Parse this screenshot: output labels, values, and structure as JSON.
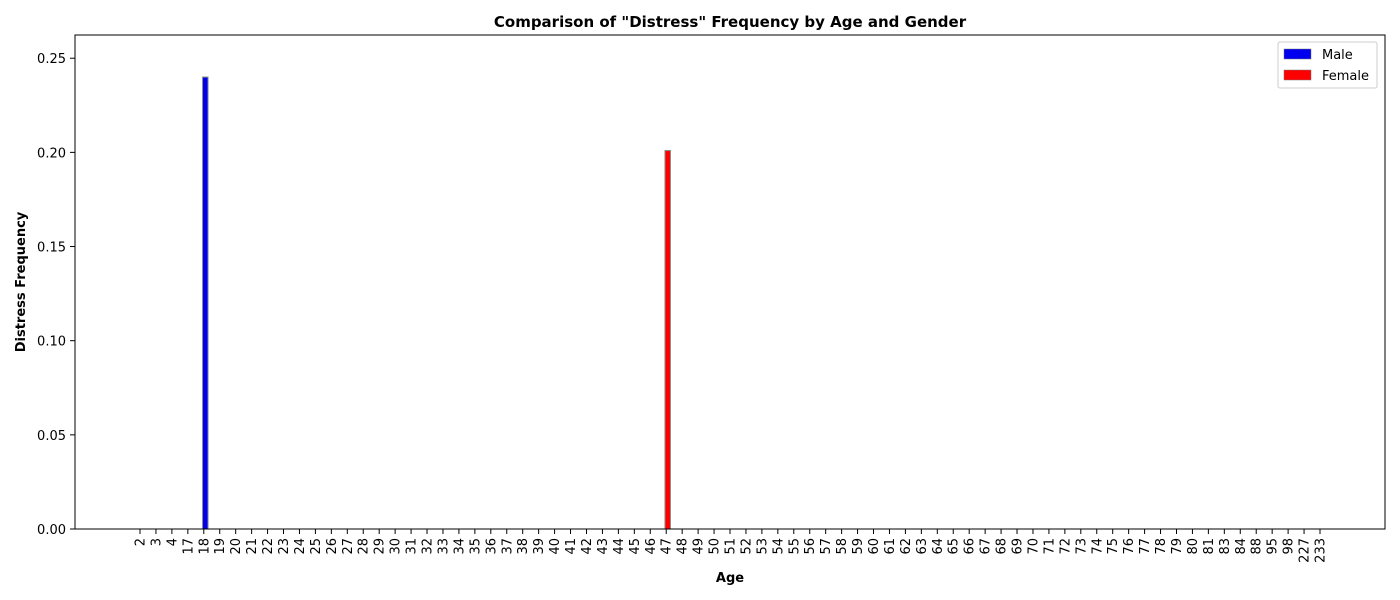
{
  "chart_data": {
    "type": "bar",
    "title": "Comparison of \"Distress\" Frequency by Age and Gender",
    "xlabel": "Age",
    "ylabel": "Distress Frequency",
    "ylim": [
      0,
      0.25
    ],
    "yticks": [
      "0.00",
      "0.05",
      "0.10",
      "0.15",
      "0.20",
      "0.25"
    ],
    "grid": false,
    "legend_position": "top-right",
    "categories": [
      "2",
      "3",
      "4",
      "17",
      "18",
      "19",
      "20",
      "21",
      "22",
      "23",
      "24",
      "25",
      "26",
      "27",
      "28",
      "29",
      "30",
      "31",
      "32",
      "33",
      "34",
      "35",
      "36",
      "37",
      "38",
      "39",
      "40",
      "41",
      "42",
      "43",
      "44",
      "45",
      "46",
      "47",
      "48",
      "49",
      "50",
      "51",
      "52",
      "53",
      "54",
      "55",
      "56",
      "57",
      "58",
      "59",
      "60",
      "61",
      "62",
      "63",
      "64",
      "65",
      "66",
      "67",
      "68",
      "69",
      "70",
      "71",
      "72",
      "73",
      "74",
      "75",
      "76",
      "77",
      "78",
      "79",
      "80",
      "81",
      "83",
      "84",
      "88",
      "95",
      "98",
      "227",
      "233"
    ],
    "series": [
      {
        "name": "Male",
        "color": "#0000ee",
        "values": [
          0,
          0,
          0,
          0,
          0.24,
          0,
          0,
          0,
          0,
          0,
          0,
          0,
          0,
          0,
          0,
          0,
          0,
          0,
          0,
          0,
          0,
          0,
          0,
          0,
          0,
          0,
          0,
          0,
          0,
          0,
          0,
          0,
          0,
          0,
          0,
          0,
          0,
          0,
          0,
          0,
          0,
          0,
          0,
          0,
          0,
          0,
          0,
          0,
          0,
          0,
          0,
          0,
          0,
          0,
          0,
          0,
          0,
          0,
          0,
          0,
          0,
          0,
          0,
          0,
          0,
          0,
          0,
          0,
          0,
          0,
          0,
          0,
          0,
          0,
          0
        ]
      },
      {
        "name": "Female",
        "color": "#ff0000",
        "values": [
          0,
          0,
          0,
          0,
          0,
          0,
          0,
          0,
          0,
          0,
          0,
          0,
          0,
          0,
          0,
          0,
          0,
          0,
          0,
          0,
          0,
          0,
          0,
          0,
          0,
          0,
          0,
          0,
          0,
          0,
          0,
          0,
          0,
          0.201,
          0,
          0,
          0,
          0,
          0,
          0,
          0,
          0,
          0,
          0,
          0,
          0,
          0,
          0,
          0,
          0,
          0,
          0,
          0,
          0,
          0,
          0,
          0,
          0,
          0,
          0,
          0,
          0,
          0,
          0,
          0,
          0,
          0,
          0,
          0,
          0,
          0,
          0,
          0,
          0,
          0
        ]
      }
    ]
  }
}
